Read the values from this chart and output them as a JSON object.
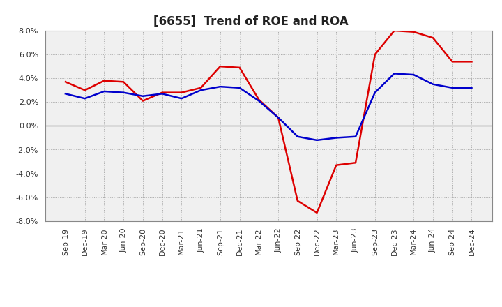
{
  "title": "[6655]  Trend of ROE and ROA",
  "x_labels": [
    "Sep-19",
    "Dec-19",
    "Mar-20",
    "Jun-20",
    "Sep-20",
    "Dec-20",
    "Mar-21",
    "Jun-21",
    "Sep-21",
    "Dec-21",
    "Mar-22",
    "Jun-22",
    "Sep-22",
    "Dec-22",
    "Mar-23",
    "Jun-23",
    "Sep-23",
    "Dec-23",
    "Mar-24",
    "Jun-24",
    "Sep-24",
    "Dec-24"
  ],
  "roe": [
    3.7,
    3.0,
    3.8,
    3.7,
    2.1,
    2.8,
    2.8,
    3.2,
    5.0,
    4.9,
    2.2,
    0.7,
    -6.3,
    -7.3,
    -3.3,
    -3.1,
    6.0,
    8.0,
    7.9,
    7.4,
    5.4,
    5.4
  ],
  "roa": [
    2.7,
    2.3,
    2.9,
    2.8,
    2.5,
    2.7,
    2.3,
    3.0,
    3.3,
    3.2,
    2.1,
    0.7,
    -0.9,
    -1.2,
    -1.0,
    -0.9,
    2.8,
    4.4,
    4.3,
    3.5,
    3.2,
    3.2
  ],
  "roe_color": "#dd0000",
  "roa_color": "#0000cc",
  "background_color": "#ffffff",
  "plot_bg_color": "#f0f0f0",
  "grid_color": "#aaaaaa",
  "ylim": [
    -8.0,
    8.0
  ],
  "yticks": [
    -8.0,
    -6.0,
    -4.0,
    -2.0,
    0.0,
    2.0,
    4.0,
    6.0,
    8.0
  ],
  "title_fontsize": 12,
  "legend_fontsize": 10,
  "tick_fontsize": 8,
  "line_width": 1.8
}
